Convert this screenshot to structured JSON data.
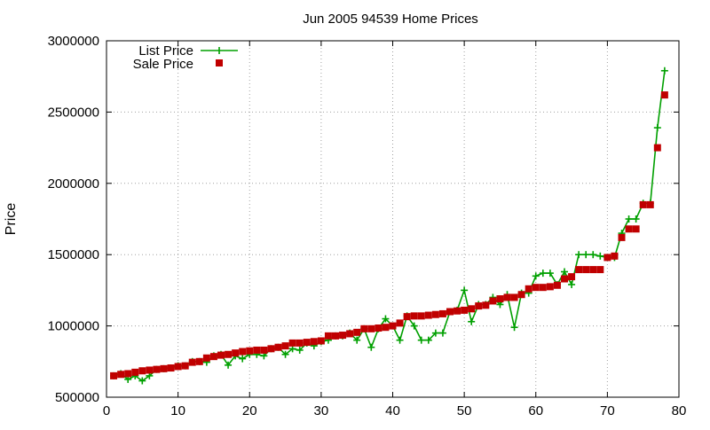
{
  "chart_data": {
    "type": "line",
    "title": "Jun 2005 94539 Home Prices",
    "xlabel": "",
    "ylabel": "Price",
    "xlim": [
      0,
      80
    ],
    "ylim": [
      500000,
      3000000
    ],
    "x_ticks": [
      0,
      10,
      20,
      30,
      40,
      50,
      60,
      70,
      80
    ],
    "y_ticks": [
      500000,
      1000000,
      1500000,
      2000000,
      2500000,
      3000000
    ],
    "grid": true,
    "legend_position": "top-left",
    "series": [
      {
        "name": "List Price",
        "style": "line-plus",
        "color": "#00a000",
        "x": [
          1,
          2,
          3,
          4,
          5,
          6,
          7,
          8,
          9,
          10,
          11,
          12,
          13,
          14,
          15,
          16,
          17,
          18,
          19,
          20,
          21,
          22,
          23,
          24,
          25,
          26,
          27,
          28,
          29,
          30,
          31,
          32,
          33,
          34,
          35,
          36,
          37,
          38,
          39,
          40,
          41,
          42,
          43,
          44,
          45,
          46,
          47,
          48,
          49,
          50,
          51,
          52,
          53,
          54,
          55,
          56,
          57,
          58,
          59,
          60,
          61,
          62,
          63,
          64,
          65,
          66,
          67,
          68,
          69,
          70,
          71,
          72,
          73,
          74,
          75,
          76,
          77,
          78
        ],
        "values": [
          650000,
          665000,
          625000,
          650000,
          615000,
          650000,
          695000,
          700000,
          705000,
          720000,
          720000,
          750000,
          750000,
          745000,
          790000,
          800000,
          725000,
          790000,
          770000,
          800000,
          800000,
          790000,
          840000,
          850000,
          800000,
          840000,
          830000,
          880000,
          860000,
          890000,
          900000,
          930000,
          930000,
          950000,
          900000,
          980000,
          850000,
          980000,
          1050000,
          1000000,
          900000,
          1070000,
          1000000,
          900000,
          900000,
          950000,
          950000,
          1100000,
          1110000,
          1250000,
          1030000,
          1150000,
          1150000,
          1200000,
          1150000,
          1220000,
          990000,
          1230000,
          1230000,
          1350000,
          1370000,
          1370000,
          1290000,
          1380000,
          1290000,
          1500000,
          1500000,
          1500000,
          1490000,
          1480000,
          1480000,
          1650000,
          1750000,
          1750000,
          1860000,
          1860000,
          2390000,
          2790000
        ]
      },
      {
        "name": "Sale Price",
        "style": "square-points",
        "color": "#c00000",
        "x": [
          1,
          2,
          3,
          4,
          5,
          6,
          7,
          8,
          9,
          10,
          11,
          12,
          13,
          14,
          15,
          16,
          17,
          18,
          19,
          20,
          21,
          22,
          23,
          24,
          25,
          26,
          27,
          28,
          29,
          30,
          31,
          32,
          33,
          34,
          35,
          36,
          37,
          38,
          39,
          40,
          41,
          42,
          43,
          44,
          45,
          46,
          47,
          48,
          49,
          50,
          51,
          52,
          53,
          54,
          55,
          56,
          57,
          58,
          59,
          60,
          61,
          62,
          63,
          64,
          65,
          66,
          67,
          68,
          69,
          70,
          71,
          72,
          73,
          74,
          75,
          76,
          77,
          78
        ],
        "values": [
          650000,
          660000,
          665000,
          675000,
          685000,
          690000,
          695000,
          700000,
          705000,
          715000,
          720000,
          745000,
          750000,
          775000,
          785000,
          795000,
          800000,
          810000,
          820000,
          825000,
          830000,
          830000,
          840000,
          850000,
          860000,
          880000,
          880000,
          885000,
          890000,
          895000,
          930000,
          930000,
          935000,
          945000,
          955000,
          980000,
          980000,
          985000,
          990000,
          1000000,
          1020000,
          1065000,
          1070000,
          1070000,
          1075000,
          1080000,
          1085000,
          1100000,
          1105000,
          1110000,
          1120000,
          1140000,
          1145000,
          1175000,
          1190000,
          1200000,
          1200000,
          1220000,
          1260000,
          1270000,
          1270000,
          1275000,
          1285000,
          1330000,
          1345000,
          1395000,
          1395000,
          1395000,
          1395000,
          1480000,
          1490000,
          1620000,
          1680000,
          1680000,
          1850000,
          1850000,
          2250000,
          2620000
        ]
      }
    ]
  }
}
